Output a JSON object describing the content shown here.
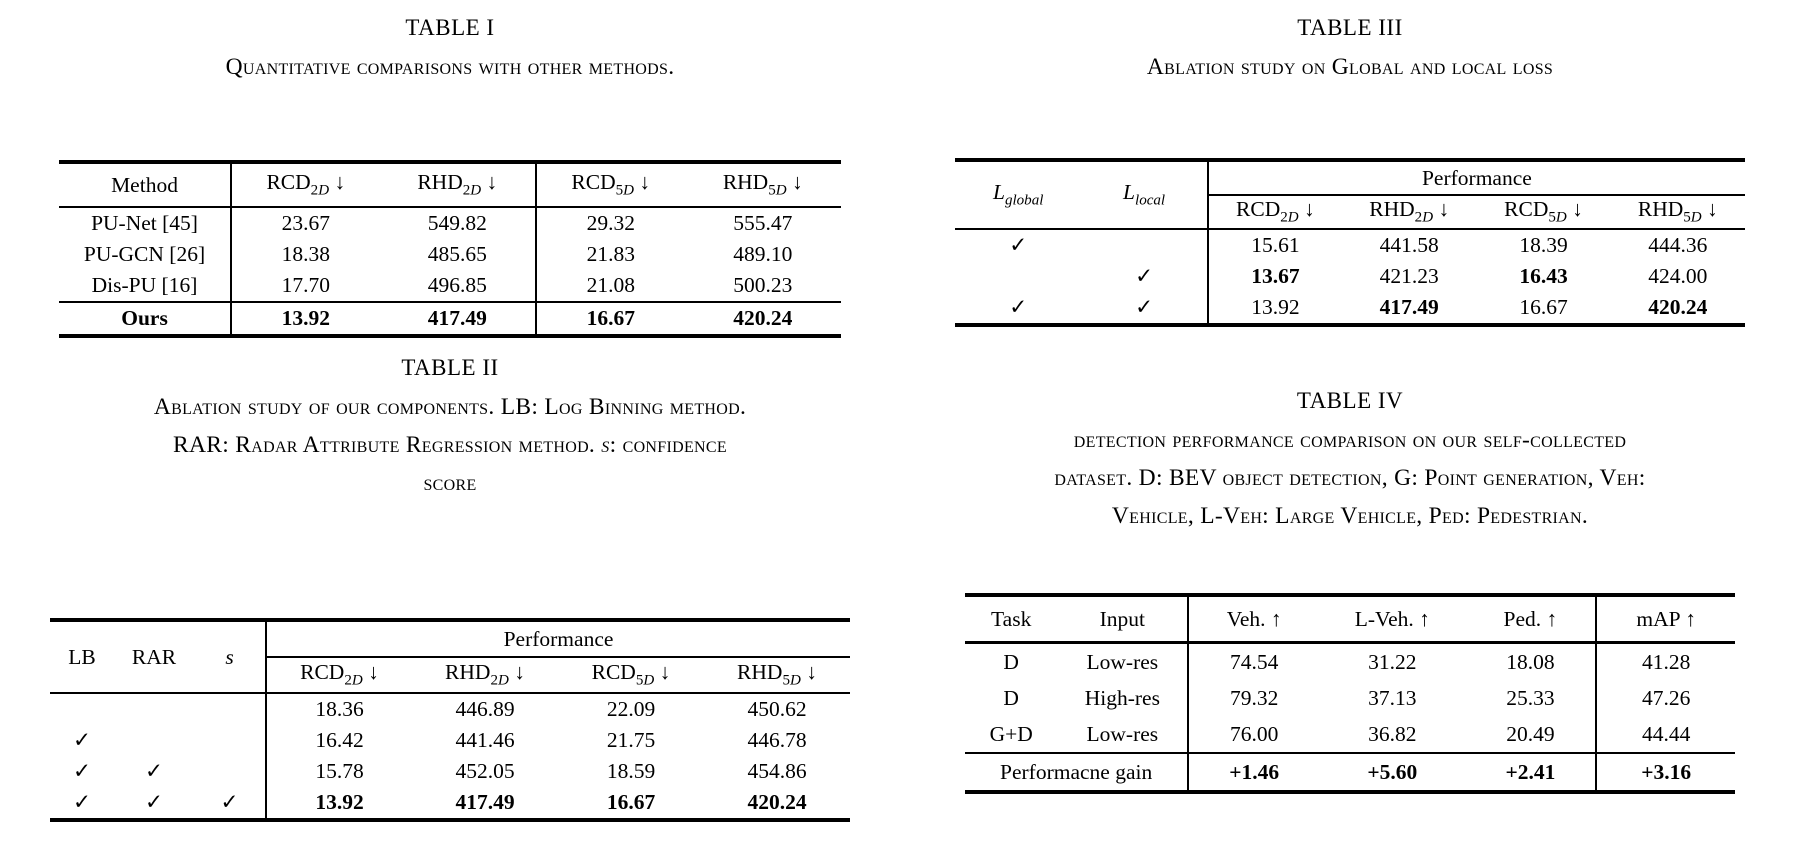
{
  "t1": {
    "title": "TABLE I",
    "caption": "Quantitative comparisons with other methods.",
    "headers": [
      "Method",
      "RCD_{2*D*} ↓",
      "RHD_{2*D*} ↓",
      "RCD_{5*D*} ↓",
      "RHD_{5*D*} ↓"
    ],
    "rows": [
      {
        "cells": [
          "PU-Net [45]",
          "23.67",
          "549.82",
          "29.32",
          "555.47"
        ]
      },
      {
        "cells": [
          "PU-GCN [26]",
          "18.38",
          "485.65",
          "21.83",
          "489.10"
        ]
      },
      {
        "cells": [
          "Dis-PU [16]",
          "17.70",
          "496.85",
          "21.08",
          "500.23"
        ]
      },
      {
        "cells": [
          "Ours",
          "13.92",
          "417.49",
          "16.67",
          "420.24"
        ],
        "bold": [
          0,
          1,
          2,
          3,
          4
        ],
        "topline": true
      }
    ]
  },
  "t2": {
    "title": "TABLE II",
    "caption_lines": [
      "Ablation study of our components. LB: Log Binning method.",
      "RAR: Radar Attribute Regression method. *s*: confidence",
      "score"
    ],
    "group_headers": [
      "LB",
      "RAR",
      "*s*"
    ],
    "perf_label": "Performance",
    "sub_headers": [
      "RCD_{2*D*} ↓",
      "RHD_{2*D*} ↓",
      "RCD_{5*D*} ↓",
      "RHD_{5*D*} ↓"
    ],
    "rows": [
      {
        "cells": [
          "",
          "",
          "",
          "18.36",
          "446.89",
          "22.09",
          "450.62"
        ]
      },
      {
        "cells": [
          "✓",
          "",
          "",
          "16.42",
          "441.46",
          "21.75",
          "446.78"
        ]
      },
      {
        "cells": [
          "✓",
          "✓",
          "",
          "15.78",
          "452.05",
          "18.59",
          "454.86"
        ]
      },
      {
        "cells": [
          "✓",
          "✓",
          "✓",
          "13.92",
          "417.49",
          "16.67",
          "420.24"
        ],
        "bold": [
          3,
          4,
          5,
          6
        ]
      }
    ]
  },
  "t3": {
    "title": "TABLE III",
    "caption": "Ablation study on Global and local loss",
    "group_headers": [
      "*L*_{*global*}",
      "*L*_{*local*}"
    ],
    "perf_label": "Performance",
    "sub_headers": [
      "RCD_{2*D*} ↓",
      "RHD_{2*D*} ↓",
      "RCD_{5*D*} ↓",
      "RHD_{5*D*} ↓"
    ],
    "rows": [
      {
        "cells": [
          "✓",
          "",
          "15.61",
          "441.58",
          "18.39",
          "444.36"
        ]
      },
      {
        "cells": [
          "",
          "✓",
          "13.67",
          "421.23",
          "16.43",
          "424.00"
        ],
        "bold": [
          2,
          4
        ]
      },
      {
        "cells": [
          "✓",
          "✓",
          "13.92",
          "417.49",
          "16.67",
          "420.24"
        ],
        "bold": [
          3,
          5
        ]
      }
    ]
  },
  "t4": {
    "title": "TABLE IV",
    "caption_lines": [
      "detection performance comparison on our self-collected",
      "dataset. D: BEV object detection, G: Point generation, Veh:",
      "Vehicle, L-Veh: Large Vehicle, Ped: Pedestrian."
    ],
    "headers": [
      "Task",
      "Input",
      "Veh. ↑",
      "L-Veh. ↑",
      "Ped. ↑",
      "mAP ↑"
    ],
    "rows": [
      {
        "cells": [
          "D",
          "Low-res",
          "74.54",
          "31.22",
          "18.08",
          "41.28"
        ]
      },
      {
        "cells": [
          "D",
          "High-res",
          "79.32",
          "37.13",
          "25.33",
          "47.26"
        ]
      },
      {
        "cells": [
          "G+D",
          "Low-res",
          "76.00",
          "36.82",
          "20.49",
          "44.44"
        ]
      },
      {
        "cells": [
          "Performacne gain",
          "+1.46",
          "+5.60",
          "+2.41",
          "+3.16"
        ],
        "spans": [
          2,
          1,
          1,
          1,
          1
        ],
        "bold": [
          1,
          2,
          3,
          4
        ],
        "topline": true
      }
    ]
  }
}
